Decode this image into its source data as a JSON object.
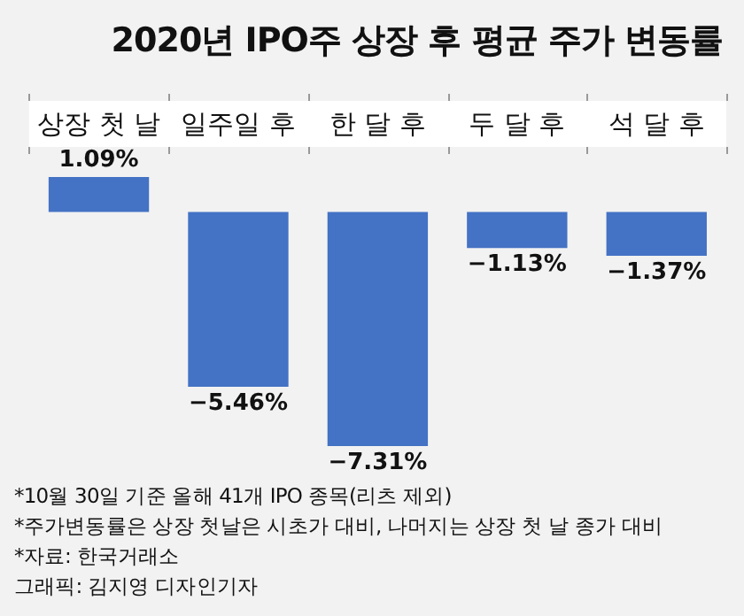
{
  "chart_data": {
    "type": "bar",
    "title": "2020년 IPO주 상장 후 평균 주가 변동률",
    "categories": [
      "상장 첫 날",
      "일주일 후",
      "한 달 후",
      "두 달 후",
      "석 달 후"
    ],
    "values": [
      1.09,
      -5.46,
      -7.31,
      -1.13,
      -1.37
    ],
    "value_labels": [
      "1.09%",
      "−5.46%",
      "−7.31%",
      "−1.13%",
      "−1.37%"
    ],
    "color": "#4472c4",
    "tick_labels": "x",
    "annotations": [
      "*10월 30일 기준 올해 41개 IPO 종목(리츠 제외)",
      "*주가변동률은 상장 첫날은 시초가 대비, 나머지는 상장 첫 날 종가 대비",
      "*자료: 한국거래소",
      "그래픽: 김지영 디자인기자"
    ]
  }
}
